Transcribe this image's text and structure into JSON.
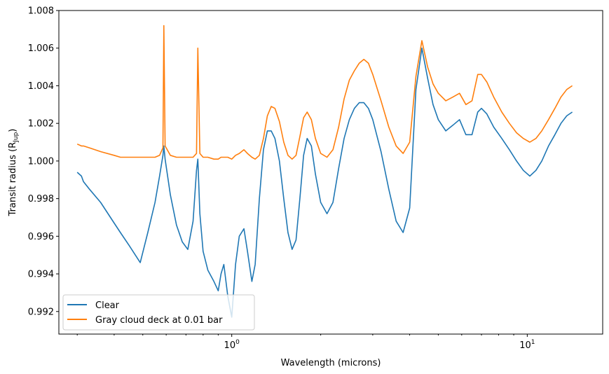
{
  "chart_data": {
    "type": "line",
    "xscale": "log",
    "xlim": [
      0.26,
      18
    ],
    "ylim": [
      0.9908,
      1.008
    ],
    "xlabel": "Wavelength (microns)",
    "ylabel": {
      "main": "Transit radius (R",
      "sub": "Jup",
      "close": ")"
    },
    "x_ticks": [
      {
        "value": 1,
        "base": "10",
        "exp": "0"
      },
      {
        "value": 10,
        "base": "10",
        "exp": "1"
      }
    ],
    "y_ticks": [
      "0.992",
      "0.994",
      "0.996",
      "0.998",
      "1.000",
      "1.002",
      "1.004",
      "1.006",
      "1.008"
    ],
    "legend_position": "lower-left",
    "grid": false,
    "series": [
      {
        "name": "Clear",
        "color": "#1f77b4",
        "x": [
          0.3,
          0.31,
          0.315,
          0.33,
          0.36,
          0.4,
          0.42,
          0.45,
          0.49,
          0.52,
          0.55,
          0.57,
          0.585,
          0.589,
          0.595,
          0.62,
          0.65,
          0.68,
          0.71,
          0.74,
          0.76,
          0.768,
          0.78,
          0.8,
          0.83,
          0.87,
          0.9,
          0.92,
          0.94,
          0.97,
          1.0,
          1.03,
          1.06,
          1.1,
          1.13,
          1.17,
          1.2,
          1.24,
          1.28,
          1.32,
          1.36,
          1.4,
          1.45,
          1.5,
          1.55,
          1.6,
          1.65,
          1.7,
          1.75,
          1.8,
          1.86,
          1.92,
          2.0,
          2.1,
          2.2,
          2.3,
          2.4,
          2.5,
          2.6,
          2.7,
          2.8,
          2.9,
          3.0,
          3.2,
          3.4,
          3.6,
          3.8,
          4.0,
          4.2,
          4.4,
          4.6,
          4.8,
          5.0,
          5.3,
          5.6,
          5.9,
          6.2,
          6.5,
          6.8,
          7.0,
          7.3,
          7.7,
          8.2,
          8.7,
          9.2,
          9.7,
          10.2,
          10.7,
          11.2,
          11.8,
          12.4,
          13.0,
          13.6,
          14.2
        ],
        "y": [
          0.9994,
          0.9992,
          0.9989,
          0.9985,
          0.9978,
          0.9967,
          0.9962,
          0.9955,
          0.9946,
          0.9962,
          0.9978,
          0.9992,
          1.0003,
          1.0008,
          1.0001,
          0.9982,
          0.9966,
          0.9957,
          0.9953,
          0.9968,
          0.9995,
          1.0001,
          0.9972,
          0.9952,
          0.9942,
          0.9936,
          0.9931,
          0.994,
          0.9945,
          0.9928,
          0.9917,
          0.9945,
          0.996,
          0.9964,
          0.9952,
          0.9936,
          0.9945,
          0.998,
          1.0006,
          1.0016,
          1.0016,
          1.0012,
          1.0,
          0.998,
          0.9962,
          0.9953,
          0.9958,
          0.998,
          1.0003,
          1.0012,
          1.0008,
          0.9993,
          0.9978,
          0.9972,
          0.9978,
          0.9996,
          1.0012,
          1.0022,
          1.0028,
          1.0031,
          1.0031,
          1.0028,
          1.0022,
          1.0005,
          0.9985,
          0.9968,
          0.9962,
          0.9975,
          1.0038,
          1.006,
          1.0044,
          1.003,
          1.0022,
          1.0016,
          1.0019,
          1.0022,
          1.0014,
          1.0014,
          1.0026,
          1.0028,
          1.0025,
          1.0018,
          1.0012,
          1.0006,
          1.0,
          0.9995,
          0.9992,
          0.9995,
          1.0,
          1.0008,
          1.0014,
          1.002,
          1.0024,
          1.0026
        ]
      },
      {
        "name": "Gray cloud deck at 0.01 bar",
        "color": "#ff7f0e",
        "x": [
          0.3,
          0.31,
          0.315,
          0.33,
          0.36,
          0.4,
          0.42,
          0.45,
          0.49,
          0.52,
          0.55,
          0.57,
          0.585,
          0.589,
          0.595,
          0.62,
          0.65,
          0.68,
          0.71,
          0.74,
          0.76,
          0.768,
          0.78,
          0.8,
          0.83,
          0.87,
          0.9,
          0.92,
          0.94,
          0.97,
          1.0,
          1.03,
          1.06,
          1.1,
          1.13,
          1.17,
          1.2,
          1.24,
          1.28,
          1.32,
          1.36,
          1.4,
          1.45,
          1.5,
          1.55,
          1.6,
          1.65,
          1.7,
          1.75,
          1.8,
          1.86,
          1.92,
          2.0,
          2.1,
          2.2,
          2.3,
          2.4,
          2.5,
          2.6,
          2.7,
          2.8,
          2.9,
          3.0,
          3.2,
          3.4,
          3.6,
          3.8,
          4.0,
          4.2,
          4.4,
          4.6,
          4.8,
          5.0,
          5.3,
          5.6,
          5.9,
          6.2,
          6.5,
          6.8,
          7.0,
          7.3,
          7.7,
          8.2,
          8.7,
          9.2,
          9.7,
          10.2,
          10.7,
          11.2,
          11.8,
          12.4,
          13.0,
          13.6,
          14.2
        ],
        "y": [
          1.0009,
          1.0008,
          1.0008,
          1.0007,
          1.0005,
          1.0003,
          1.0002,
          1.0002,
          1.0002,
          1.0002,
          1.0002,
          1.0003,
          1.0007,
          1.0072,
          1.0008,
          1.0003,
          1.0002,
          1.0002,
          1.0002,
          1.0002,
          1.0004,
          1.006,
          1.0004,
          1.0002,
          1.0002,
          1.0001,
          1.0001,
          1.0002,
          1.0002,
          1.0002,
          1.0001,
          1.0003,
          1.0004,
          1.0006,
          1.0004,
          1.0002,
          1.0001,
          1.0003,
          1.0012,
          1.0024,
          1.0029,
          1.0028,
          1.0021,
          1.001,
          1.0003,
          1.0001,
          1.0003,
          1.0013,
          1.0023,
          1.0026,
          1.0022,
          1.0012,
          1.0004,
          1.0002,
          1.0006,
          1.0018,
          1.0033,
          1.0043,
          1.0048,
          1.0052,
          1.0054,
          1.0052,
          1.0046,
          1.0032,
          1.0018,
          1.0008,
          1.0004,
          1.001,
          1.0045,
          1.0064,
          1.005,
          1.0041,
          1.0036,
          1.0032,
          1.0034,
          1.0036,
          1.003,
          1.0032,
          1.0046,
          1.0046,
          1.0042,
          1.0034,
          1.0026,
          1.002,
          1.0015,
          1.0012,
          1.001,
          1.0012,
          1.0016,
          1.0022,
          1.0028,
          1.0034,
          1.0038,
          1.004
        ]
      }
    ]
  }
}
